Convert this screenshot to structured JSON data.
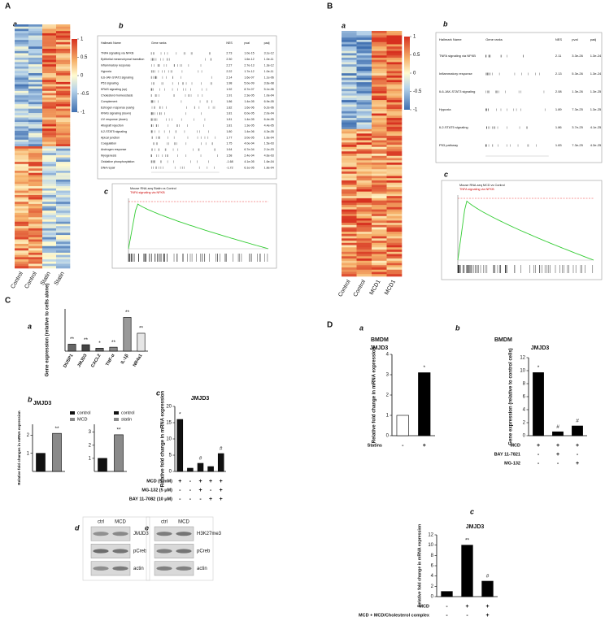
{
  "panel_labels": [
    "A",
    "a",
    "b",
    "c",
    "B",
    "a",
    "b",
    "c",
    "C",
    "a",
    "b",
    "c",
    "d",
    "e",
    "D",
    "a",
    "b",
    "c"
  ],
  "heatmaps": [
    {
      "columns": [
        "Control",
        "Control",
        "Statin",
        "Statin"
      ],
      "colorbar_ticks": [
        1,
        0.5,
        0,
        -0.5,
        -1
      ]
    },
    {
      "columns": [
        "Control",
        "Control",
        "MCD1",
        "MCD1"
      ],
      "colorbar_ticks": [
        1,
        0.5,
        0,
        -0.5,
        -1
      ]
    }
  ],
  "gsea_tables": [
    {
      "headers": [
        "Hallmark Name",
        "Gene ranks",
        "NES",
        "pval",
        "padj"
      ],
      "rows": [
        [
          "TNFA signaling via NFKB",
          "2.73",
          "1.0e-15",
          "3.1e-12"
        ],
        [
          "Epithelial mesenchymal transition",
          "2.30",
          "1.6e-12",
          "1.0e-11"
        ],
        [
          "Inflammatory response",
          "2.27",
          "2.7e-13",
          "1.3e-12"
        ],
        [
          "Hypoxia",
          "2.22",
          "1.7e-12",
          "1.0e-11"
        ],
        [
          "IL6-JAK-STAT3 signaling",
          "2.14",
          "1.6e-07",
          "1.1e-06"
        ],
        [
          "P53 signaling",
          "1.98",
          "5.0e-09",
          "3.6e-08"
        ],
        [
          "KRAS signaling (up)",
          "1.92",
          "8.7e-07",
          "5.1e-06"
        ],
        [
          "Cholesterol homeostasis",
          "1.91",
          "2.3e-05",
          "1.0e-04"
        ],
        [
          "Complement",
          "1.86",
          "1.4e-05",
          "6.9e-05"
        ],
        [
          "Estrogen response (early)",
          "1.82",
          "1.6e-06",
          "6.2e-06"
        ],
        [
          "KRAS signaling (down)",
          "1.81",
          "6.0e-05",
          "2.0e-04"
        ],
        [
          "UV response (down)",
          "1.81",
          "1.4e-05",
          "6.4e-05"
        ],
        [
          "Allograft rejection",
          "1.81",
          "1.3e-05",
          "4.4e-05"
        ],
        [
          "IL2-STAT5 signaling",
          "1.80",
          "1.4e-06",
          "4.3e-05"
        ],
        [
          "Apical junction",
          "1.77",
          "3.0e-05",
          "1.6e-04"
        ],
        [
          "Coagulation",
          "1.75",
          "4.0e-04",
          "1.5e-03"
        ],
        [
          "Androgen response",
          "1.64",
          "6.7e-04",
          "2.1e-03"
        ],
        [
          "Myogenesis",
          "1.58",
          "2.4e-04",
          "4.6e-03"
        ],
        [
          "Oxidative phosphorylation",
          "-1.68",
          "4.1e-05",
          "1.6e-04"
        ],
        [
          "DNA repair",
          "-1.72",
          "6.1e-05",
          "1.8e-04"
        ]
      ]
    },
    {
      "headers": [
        "Hallmark Name",
        "Gene ranks",
        "NES",
        "pval",
        "padj"
      ],
      "rows": [
        [
          "TNFA signaling via NFKB",
          "2.11",
          "3.3e-26",
          "1.3e-24"
        ],
        [
          "Inflammatory response",
          "2.13",
          "5.3e-26",
          "1.3e-24"
        ],
        [
          "IL6-JAK-STAT3 signaling",
          "2.08",
          "1.3e-26",
          "1.3e-25"
        ],
        [
          "Hypoxia",
          "1.89",
          "7.3e-25",
          "1.3e-25"
        ],
        [
          "IL2-STAT5 signaling",
          "1.86",
          "3.7e-25",
          "4.1e-25"
        ],
        [
          "P53 pathway",
          "1.83",
          "7.3e-25",
          "4.3e-25"
        ]
      ]
    }
  ],
  "gsea_plots": [
    {
      "title": "Mouse RNA-seq Statin vs Control",
      "gene_set": "TNFA signaling via NFKB"
    },
    {
      "title": "Mouse RNA-seq MCD vs Control",
      "gene_set": "TNFA signaling via NFKB"
    }
  ],
  "blots": [
    {
      "lanes": [
        "ctrl",
        "MCD"
      ],
      "bands": [
        "JMJD3",
        "pCreb",
        "actin"
      ]
    },
    {
      "lanes": [
        "ctrl",
        "MCD"
      ],
      "bands": [
        "H3K27me3",
        "pCreb",
        "actin"
      ]
    }
  ],
  "chart_data": [
    {
      "type": "bar",
      "ylabel": "Gene expression (relative to cells alone)",
      "categories": [
        "DUSP1",
        "JMJD3",
        "CXCL2",
        "TNF-α",
        "IL-1β",
        "NR4a1"
      ],
      "values": [
        14,
        13,
        6,
        8,
        68,
        36
      ],
      "colors": [
        "#666666",
        "#444444",
        "#666666",
        "#888888",
        "#999999",
        "#e6e6e6"
      ],
      "ylim": [
        0,
        85
      ],
      "annotations": [
        {
          "bar": 0,
          "text": "**"
        },
        {
          "bar": 1,
          "text": "**"
        },
        {
          "bar": 2,
          "text": "*"
        },
        {
          "bar": 3,
          "text": "**"
        },
        {
          "bar": 4,
          "text": "**"
        },
        {
          "bar": 5,
          "text": "**"
        }
      ]
    },
    {
      "type": "bar",
      "title": "JMJD3",
      "ylabel": "Relative fold changes in mRNA expression",
      "series": [
        {
          "name": "control",
          "color": "#111111",
          "values": [
            1
          ]
        },
        {
          "name": "MCD",
          "color": "#8a8a8a",
          "values": [
            2.1
          ]
        }
      ],
      "ylim": [
        0,
        2.6
      ],
      "yticks": [
        1,
        2
      ],
      "annotations": [
        {
          "bar": 1,
          "text": "**"
        }
      ]
    },
    {
      "type": "bar",
      "series": [
        {
          "name": "control",
          "color": "#111111",
          "values": [
            1
          ]
        },
        {
          "name": "statin",
          "color": "#8a8a8a",
          "values": [
            2.8
          ]
        }
      ],
      "ylim": [
        0,
        3.6
      ],
      "yticks": [
        1,
        2,
        3
      ],
      "annotations": [
        {
          "bar": 1,
          "text": "**"
        }
      ]
    },
    {
      "type": "bar",
      "title": "JMJD3",
      "ylabel": "Relative fold change in mRNA expression",
      "values": [
        16,
        1,
        2.5,
        1.5,
        5.5
      ],
      "color": "#111111",
      "ylim": [
        0,
        20
      ],
      "yticks": [
        0,
        5,
        10,
        15,
        20
      ],
      "annotations": [
        {
          "bar": 0,
          "text": "*"
        },
        {
          "bar": 2,
          "text": "#"
        },
        {
          "bar": 4,
          "text": "#"
        }
      ],
      "conditions": [
        {
          "label": "MCD (5 mM)",
          "signs": [
            "+",
            "-",
            "+",
            "+",
            "+"
          ]
        },
        {
          "label": "MG-132 (5 μM)",
          "signs": [
            "-",
            "-",
            "+",
            "-",
            "+"
          ]
        },
        {
          "label": "BAY 11-7082 (10 μM)",
          "signs": [
            "-",
            "-",
            "-",
            "+",
            "+"
          ]
        }
      ]
    },
    {
      "type": "bar",
      "header": "BMDM",
      "title": "JMJD3",
      "ylabel": "Relative fold change in mRNA expression",
      "values": [
        1,
        3.1
      ],
      "colors": [
        "#ffffff",
        "#000000"
      ],
      "ylim": [
        0,
        4
      ],
      "yticks": [
        0,
        1,
        2,
        3,
        4
      ],
      "annotations": [
        {
          "bar": 1,
          "text": "*"
        }
      ],
      "conditions": [
        {
          "label": "Statins",
          "signs": [
            "-",
            "+"
          ]
        }
      ]
    },
    {
      "type": "bar",
      "header": "BMDM",
      "title": "JMJD3",
      "ylabel": "Gene expression (relative to control cells)",
      "values": [
        9.7,
        0.6,
        1.5
      ],
      "color": "#000000",
      "ylim": [
        0,
        12
      ],
      "yticks": [
        0,
        2,
        4,
        6,
        8,
        10,
        12
      ],
      "annotations": [
        {
          "bar": 0,
          "text": "*"
        },
        {
          "bar": 1,
          "text": "#"
        },
        {
          "bar": 2,
          "text": "#"
        }
      ],
      "conditions": [
        {
          "label": "MCD",
          "signs": [
            "+",
            "+",
            "+"
          ]
        },
        {
          "label": "BAY 11-7821",
          "signs": [
            "-",
            "+",
            "-"
          ]
        },
        {
          "label": "MG-132",
          "signs": [
            "-",
            "-",
            "+"
          ]
        }
      ]
    },
    {
      "type": "bar",
      "title": "JMJD3",
      "ylabel": "Relative fold change in mRNA expression",
      "values": [
        1,
        10,
        3
      ],
      "color": "#000000",
      "ylim": [
        0,
        12
      ],
      "yticks": [
        0,
        2,
        4,
        6,
        8,
        10,
        12
      ],
      "annotations": [
        {
          "bar": 1,
          "text": "**"
        },
        {
          "bar": 2,
          "text": "#"
        }
      ],
      "conditions": [
        {
          "label": "MCD",
          "signs": [
            "-",
            "+",
            "+"
          ]
        },
        {
          "label": "MCD + MCD/Cholesterol complex",
          "signs": [
            "-",
            "-",
            "+"
          ]
        }
      ]
    }
  ]
}
